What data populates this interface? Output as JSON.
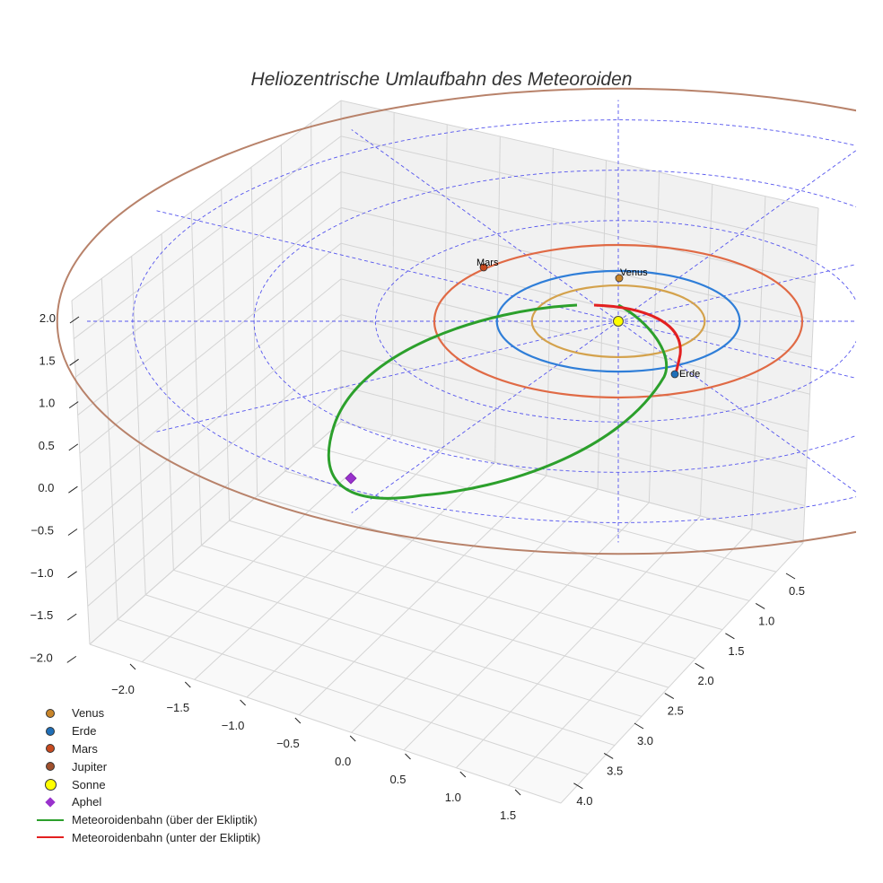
{
  "chart_data": {
    "type": "3d-line",
    "title": "Heliozentrische Umlaufbahn des Meteoroiden",
    "x_ticks": [
      "−2.0",
      "−1.5",
      "−1.0",
      "−0.5",
      "0.0",
      "0.5",
      "1.0",
      "1.5"
    ],
    "y_ticks": [
      "0.5",
      "1.0",
      "1.5",
      "2.0",
      "2.5",
      "3.0",
      "3.5",
      "4.0"
    ],
    "z_ticks": [
      "2.0",
      "1.5",
      "1.0",
      "0.5",
      "0.0",
      "−0.5",
      "−1.0",
      "−1.5",
      "−2.0"
    ],
    "planets": [
      {
        "name": "Venus",
        "radius_au": 0.72,
        "color": "#d4a24c",
        "marker_color": "#c8852a",
        "label": "Venus"
      },
      {
        "name": "Erde",
        "radius_au": 1.0,
        "color": "#2f7ed8",
        "marker_color": "#1f6fb8",
        "label": "Erde"
      },
      {
        "name": "Mars",
        "radius_au": 1.52,
        "color": "#e06a45",
        "marker_color": "#c84a1f",
        "label": "Mars"
      },
      {
        "name": "Jupiter",
        "radius_au": 5.2,
        "color": "#b8826a",
        "marker_color": "#a0502d",
        "label": ""
      }
    ],
    "sun": {
      "name": "Sonne",
      "color": "#ffff00"
    },
    "aphel": {
      "name": "Aphel",
      "color": "#9932cc"
    },
    "meteoroid_orbit": {
      "above_color": "#2ca02c",
      "below_color": "#e32020"
    },
    "reference_grid": {
      "color": "#5555ee",
      "style": "dashed"
    }
  },
  "legend": [
    {
      "label": "Venus",
      "kind": "dot",
      "color": "#c8852a"
    },
    {
      "label": "Erde",
      "kind": "dot",
      "color": "#1f6fb8"
    },
    {
      "label": "Mars",
      "kind": "dot",
      "color": "#c84a1f"
    },
    {
      "label": "Jupiter",
      "kind": "dot",
      "color": "#a0502d"
    },
    {
      "label": "Sonne",
      "kind": "bigdot",
      "color": "#ffff00"
    },
    {
      "label": "Aphel",
      "kind": "diamond",
      "color": "#9932cc"
    },
    {
      "label": "Meteoroidenbahn (über der Ekliptik)",
      "kind": "line",
      "color": "#2ca02c"
    },
    {
      "label": "Meteoroidenbahn (unter der Ekliptik)",
      "kind": "line",
      "color": "#e32020"
    }
  ]
}
